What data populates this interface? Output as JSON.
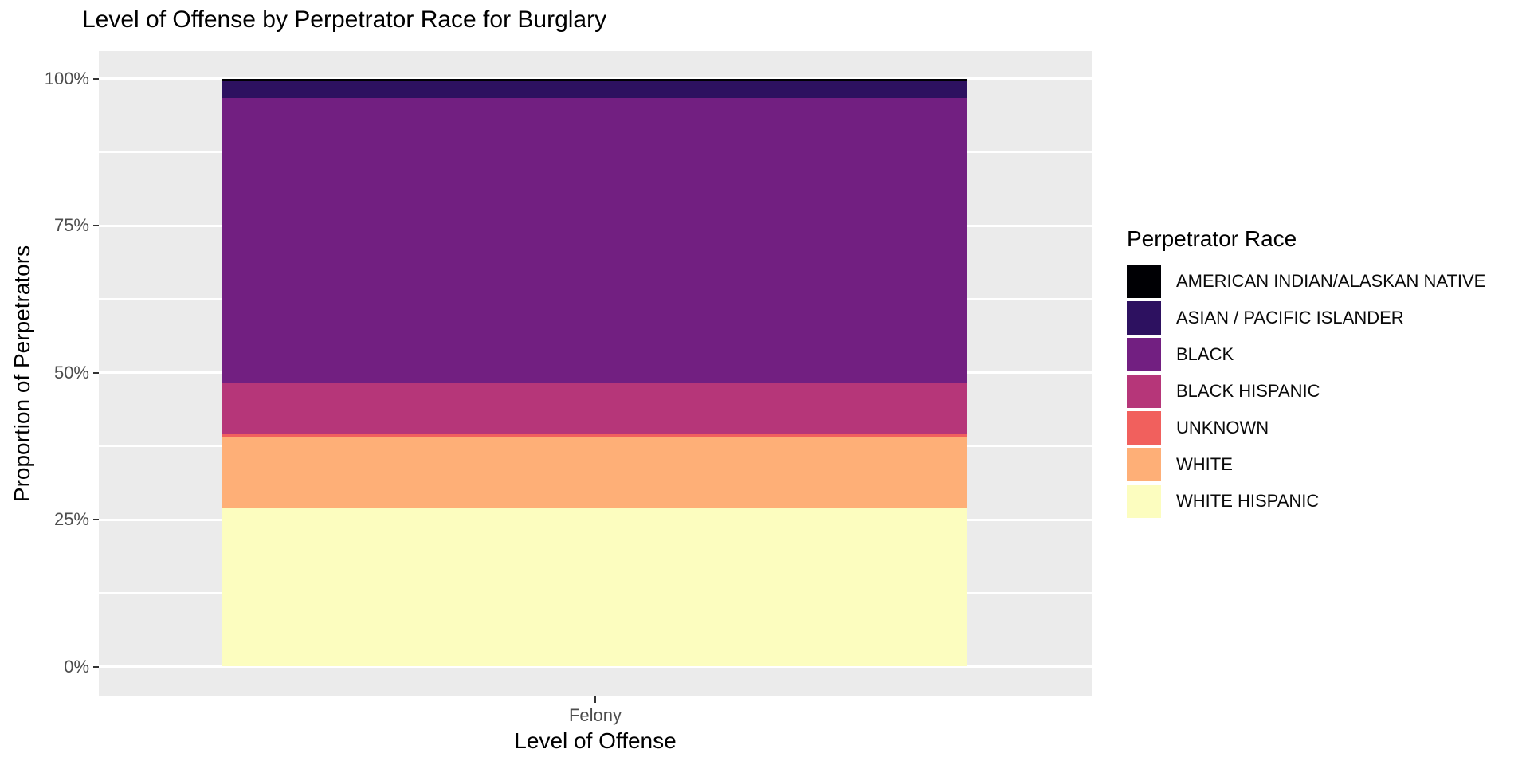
{
  "chart_data": {
    "type": "bar",
    "stacked": true,
    "normalized": "percent-fill",
    "title": "Level of Offense by Perpetrator Race for Burglary",
    "xlabel": "Level of Offense",
    "ylabel": "Proportion of Perpetrators",
    "categories": [
      "Felony"
    ],
    "series": [
      {
        "name": "AMERICAN INDIAN/ALASKAN NATIVE",
        "color": "#000004",
        "values": [
          0.4
        ]
      },
      {
        "name": "ASIAN / PACIFIC ISLANDER",
        "color": "#2D1160",
        "values": [
          2.9
        ]
      },
      {
        "name": "BLACK",
        "color": "#721F81",
        "values": [
          48.5
        ]
      },
      {
        "name": "BLACK HISPANIC",
        "color": "#B63679",
        "values": [
          8.5
        ]
      },
      {
        "name": "UNKNOWN",
        "color": "#F1605D",
        "values": [
          0.6
        ]
      },
      {
        "name": "WHITE",
        "color": "#FEAF77",
        "values": [
          12.2
        ]
      },
      {
        "name": "WHITE HISPANIC",
        "color": "#FCFDBF",
        "values": [
          26.9
        ]
      }
    ],
    "stack_order_bottom_to_top": [
      "WHITE HISPANIC",
      "WHITE",
      "UNKNOWN",
      "BLACK HISPANIC",
      "BLACK",
      "ASIAN / PACIFIC ISLANDER",
      "AMERICAN INDIAN/ALASKAN NATIVE"
    ],
    "y_ticks": [
      {
        "label": "0%",
        "value": 0
      },
      {
        "label": "25%",
        "value": 25
      },
      {
        "label": "50%",
        "value": 50
      },
      {
        "label": "75%",
        "value": 75
      },
      {
        "label": "100%",
        "value": 100
      }
    ],
    "y_minor_ticks": [
      12.5,
      37.5,
      62.5,
      87.5
    ],
    "ylim": [
      0,
      100
    ],
    "grid": true,
    "legend_title": "Perpetrator Race",
    "legend_position": "right",
    "panel_background": "#EBEBEB",
    "gridline_color": "#FFFFFF",
    "axis_text_color": "#4D4D4D",
    "tick_mark_color": "#333333"
  }
}
